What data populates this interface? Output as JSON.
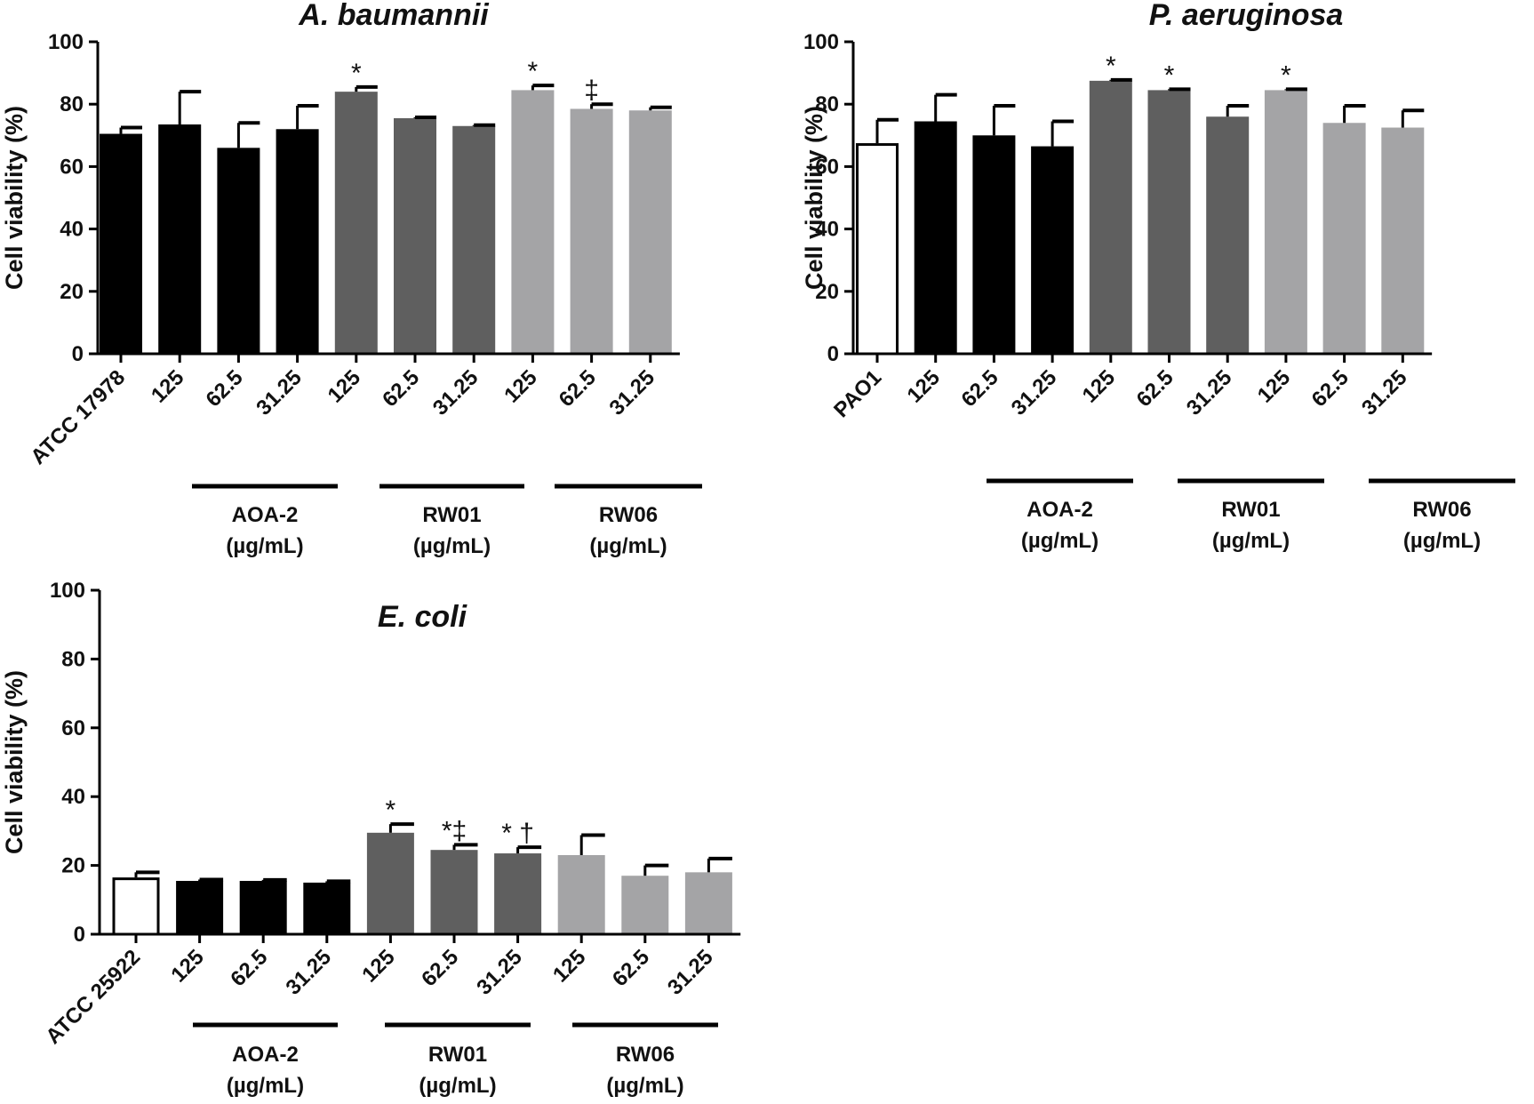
{
  "colors": {
    "control_filled": "#000000",
    "control_open": "#ffffff",
    "aoa2": "#000000",
    "rw01": "#5f5f5f",
    "rw06": "#a4a4a6",
    "axis": "#000000"
  },
  "chart_data": [
    {
      "type": "bar",
      "title": "A. baumannii",
      "ylabel": "Cell viability (%)",
      "ylim": [
        0,
        100
      ],
      "yticks": [
        0,
        20,
        40,
        60,
        80,
        100
      ],
      "control_style": "filled",
      "categories": [
        "ATCC 17978",
        "125",
        "62.5",
        "31.25",
        "125",
        "62.5",
        "31.25",
        "125",
        "62.5",
        "31.25"
      ],
      "groups": [
        "control",
        "AOA-2",
        "AOA-2",
        "AOA-2",
        "RW01",
        "RW01",
        "RW01",
        "RW06",
        "RW06",
        "RW06"
      ],
      "values": [
        70.5,
        73.5,
        66,
        72,
        84,
        75.5,
        73,
        84.5,
        78.5,
        78
      ],
      "errors": [
        2,
        10.5,
        8,
        7.5,
        1.5,
        0.3,
        0.3,
        1.5,
        1.5,
        1
      ],
      "annotations": [
        "",
        "",
        "",
        "",
        "*",
        "",
        "",
        "*",
        "‡",
        ""
      ],
      "group_labels": [
        {
          "name": "AOA-2",
          "unit": "(µg/mL)"
        },
        {
          "name": "RW01",
          "unit": "(µg/mL)"
        },
        {
          "name": "RW06",
          "unit": "(µg/mL)"
        }
      ]
    },
    {
      "type": "bar",
      "title": "P. aeruginosa",
      "ylabel": "Cell viability (%)",
      "ylim": [
        0,
        100
      ],
      "yticks": [
        0,
        20,
        40,
        60,
        80,
        100
      ],
      "control_style": "open",
      "categories": [
        "PAO1",
        "125",
        "62.5",
        "31.25",
        "125",
        "62.5",
        "31.25",
        "125",
        "62.5",
        "31.25"
      ],
      "groups": [
        "control",
        "AOA-2",
        "AOA-2",
        "AOA-2",
        "RW01",
        "RW01",
        "RW01",
        "RW06",
        "RW06",
        "RW06"
      ],
      "values": [
        67.5,
        74.5,
        70,
        66.5,
        87.5,
        84.5,
        76,
        84.5,
        74,
        72.5
      ],
      "errors": [
        7.5,
        8.5,
        9.5,
        8,
        0.3,
        0.3,
        3.5,
        0.3,
        5.5,
        5.5
      ],
      "annotations": [
        "",
        "",
        "",
        "",
        "*",
        "*",
        "",
        "*",
        "",
        ""
      ],
      "group_labels": [
        {
          "name": "AOA-2",
          "unit": "(µg/mL)"
        },
        {
          "name": "RW01",
          "unit": "(µg/mL)"
        },
        {
          "name": "RW06",
          "unit": "(µg/mL)"
        }
      ]
    },
    {
      "type": "bar",
      "title": "E. coli",
      "ylabel": "Cell viability (%)",
      "ylim": [
        0,
        100
      ],
      "yticks": [
        0,
        20,
        40,
        60,
        80,
        100
      ],
      "control_style": "open",
      "categories": [
        "ATCC 25922",
        "125",
        "62.5",
        "31.25",
        "125",
        "62.5",
        "31.25",
        "125",
        "62.5",
        "31.25"
      ],
      "groups": [
        "control",
        "AOA-2",
        "AOA-2",
        "AOA-2",
        "RW01",
        "RW01",
        "RW01",
        "RW06",
        "RW06",
        "RW06"
      ],
      "values": [
        16.5,
        15.5,
        15.5,
        15,
        29.5,
        24.5,
        23.5,
        23,
        17,
        18
      ],
      "errors": [
        1.5,
        0.4,
        0.3,
        0.4,
        2.5,
        1.5,
        1.8,
        5.8,
        3,
        4
      ],
      "annotations": [
        "",
        "",
        "",
        "",
        "*",
        "*‡",
        "* †",
        "",
        "",
        ""
      ],
      "group_labels": [
        {
          "name": "AOA-2",
          "unit": "(µg/mL)"
        },
        {
          "name": "RW01",
          "unit": "(µg/mL)"
        },
        {
          "name": "RW06",
          "unit": "(µg/mL)"
        }
      ]
    }
  ]
}
